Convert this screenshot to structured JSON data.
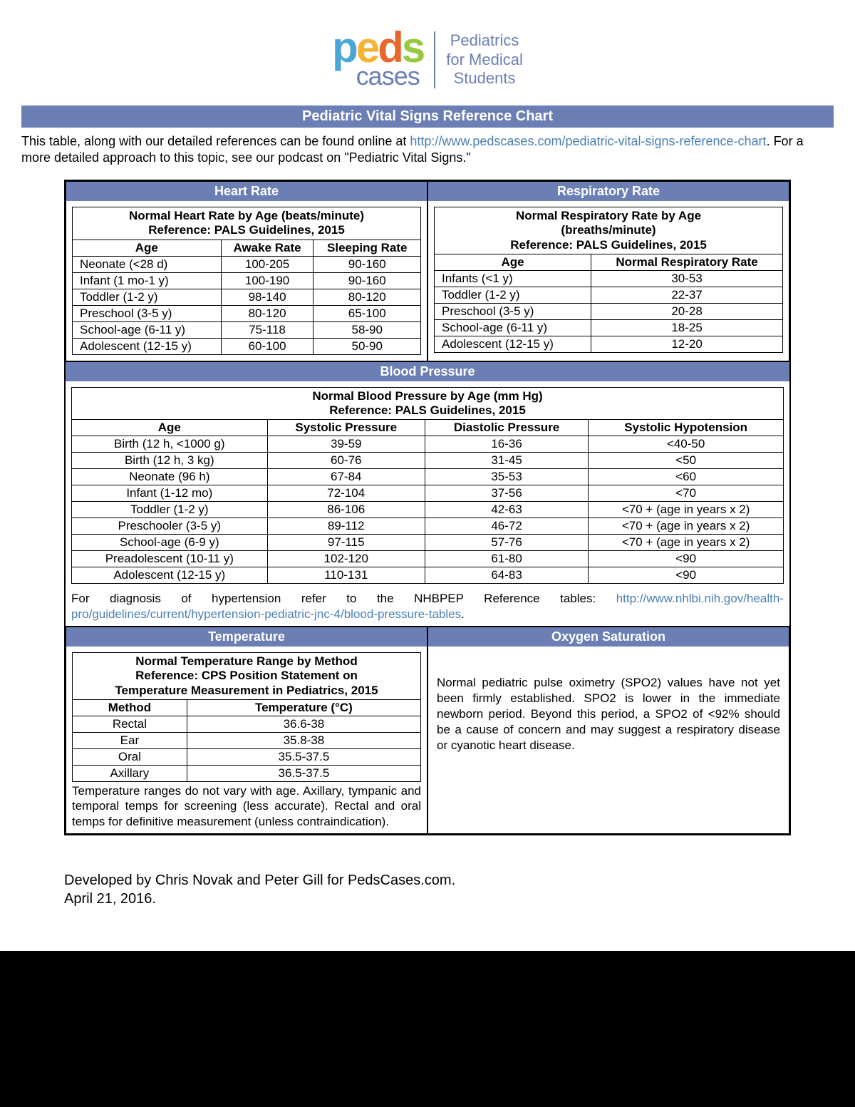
{
  "logo": {
    "letters": [
      "p",
      "e",
      "d",
      "s"
    ],
    "cases": "cases",
    "tagline_l1": "Pediatrics",
    "tagline_l2": "for Medical",
    "tagline_l3": "Students"
  },
  "title": "Pediatric Vital Signs Reference Chart",
  "intro": {
    "pre": "This table, along with our detailed references can be found online at ",
    "link1": "http://www.pedscases.com/pediatric-vital-signs-reference-chart",
    "post": ". For a more detailed approach to this topic, see our podcast on \"Pediatric Vital Signs.\""
  },
  "heart_rate": {
    "header": "Heart Rate",
    "title_l1": "Normal Heart Rate by Age (beats/minute)",
    "title_l2": "Reference: PALS Guidelines, 2015",
    "cols": [
      "Age",
      "Awake Rate",
      "Sleeping Rate"
    ],
    "rows": [
      [
        "Neonate (<28 d)",
        "100-205",
        "90-160"
      ],
      [
        "Infant (1 mo-1 y)",
        "100-190",
        "90-160"
      ],
      [
        "Toddler (1-2 y)",
        "98-140",
        "80-120"
      ],
      [
        "Preschool (3-5 y)",
        "80-120",
        "65-100"
      ],
      [
        "School-age (6-11 y)",
        "75-118",
        "58-90"
      ],
      [
        "Adolescent (12-15 y)",
        "60-100",
        "50-90"
      ]
    ]
  },
  "resp_rate": {
    "header": "Respiratory Rate",
    "title_l1": "Normal Respiratory Rate by Age",
    "title_l2": "(breaths/minute)",
    "title_l3": "Reference: PALS Guidelines, 2015",
    "cols": [
      "Age",
      "Normal Respiratory Rate"
    ],
    "rows": [
      [
        "Infants (<1 y)",
        "30-53"
      ],
      [
        "Toddler (1-2 y)",
        "22-37"
      ],
      [
        "Preschool (3-5 y)",
        "20-28"
      ],
      [
        "School-age (6-11 y)",
        "18-25"
      ],
      [
        "Adolescent (12-15 y)",
        "12-20"
      ]
    ]
  },
  "bp": {
    "header": "Blood Pressure",
    "title_l1": "Normal Blood Pressure by Age (mm Hg)",
    "title_l2": "Reference: PALS Guidelines, 2015",
    "cols": [
      "Age",
      "Systolic Pressure",
      "Diastolic Pressure",
      "Systolic Hypotension"
    ],
    "rows": [
      [
        "Birth (12 h, <1000 g)",
        "39-59",
        "16-36",
        "<40-50"
      ],
      [
        "Birth (12 h, 3 kg)",
        "60-76",
        "31-45",
        "<50"
      ],
      [
        "Neonate (96 h)",
        "67-84",
        "35-53",
        "<60"
      ],
      [
        "Infant (1-12 mo)",
        "72-104",
        "37-56",
        "<70"
      ],
      [
        "Toddler (1-2 y)",
        "86-106",
        "42-63",
        "<70 + (age in years x 2)"
      ],
      [
        "Preschooler (3-5 y)",
        "89-112",
        "46-72",
        "<70 + (age in years x 2)"
      ],
      [
        "School-age (6-9 y)",
        "97-115",
        "57-76",
        "<70 + (age in years x 2)"
      ],
      [
        "Preadolescent (10-11 y)",
        "102-120",
        "61-80",
        "<90"
      ],
      [
        "Adolescent (12-15 y)",
        "110-131",
        "64-83",
        "<90"
      ]
    ],
    "note_pre": "For diagnosis of hypertension refer to the NHBPEP Reference tables: ",
    "note_link": "http://www.nhlbi.nih.gov/health-pro/guidelines/current/hypertension-pediatric-jnc-4/blood-pressure-tables",
    "note_post": "."
  },
  "temp": {
    "header": "Temperature",
    "title_l1": "Normal Temperature Range by Method",
    "title_l2": "Reference: CPS Position Statement on",
    "title_l3": "Temperature Measurement in Pediatrics, 2015",
    "cols": [
      "Method",
      "Temperature (°C)"
    ],
    "rows": [
      [
        "Rectal",
        "36.6-38"
      ],
      [
        "Ear",
        "35.8-38"
      ],
      [
        "Oral",
        "35.5-37.5"
      ],
      [
        "Axillary",
        "36.5-37.5"
      ]
    ],
    "note": "Temperature ranges do not vary with age. Axillary, tympanic and temporal temps for screening (less accurate). Rectal and oral temps for definitive measurement (unless contraindication)."
  },
  "oxygen": {
    "header": "Oxygen Saturation",
    "text": "Normal pediatric pulse oximetry (SPO2) values have not yet been firmly established. SPO2 is lower in the immediate newborn period. Beyond this period, a SPO2 of <92% should be a cause of concern and may suggest a respiratory disease or cyanotic heart disease."
  },
  "footer": {
    "l1": "Developed by Chris Novak and Peter Gill for PedsCases.com.",
    "l2": "April 21, 2016."
  },
  "colors": {
    "header_bg": "#6b7fb5",
    "link": "#4a7fb5"
  }
}
